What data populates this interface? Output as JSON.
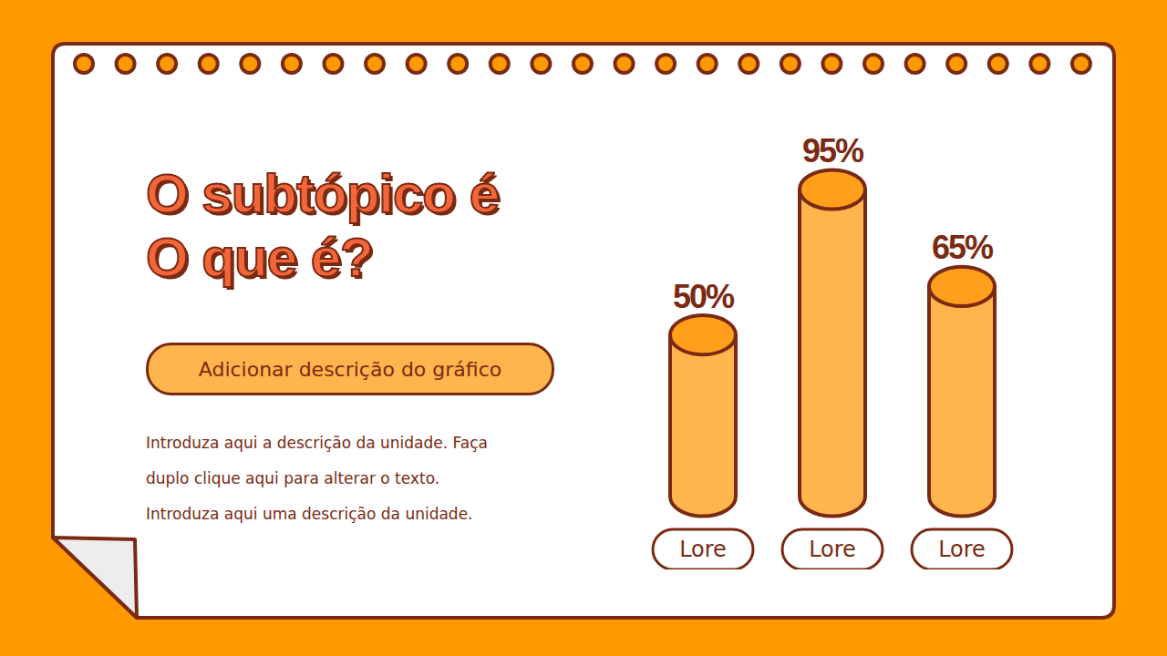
{
  "chart_data": {
    "type": "bar",
    "title": "O subtópico é\nO que é?",
    "subtitle": "Adicionar descrição do gráfico",
    "annotations": [
      "Introduza aqui a descrição da unidade. Faça",
      "duplo clique aqui para alterar o texto.",
      "Introduza aqui uma descrição da unidade."
    ],
    "categories": [
      "Lore",
      "Lore",
      "Lore"
    ],
    "values": [
      50,
      95,
      65
    ],
    "value_labels": [
      "50%",
      "95%",
      "65%"
    ],
    "data_labels": true,
    "tick_labels": "x",
    "color": "#FFB54D",
    "grid": false
  }
}
